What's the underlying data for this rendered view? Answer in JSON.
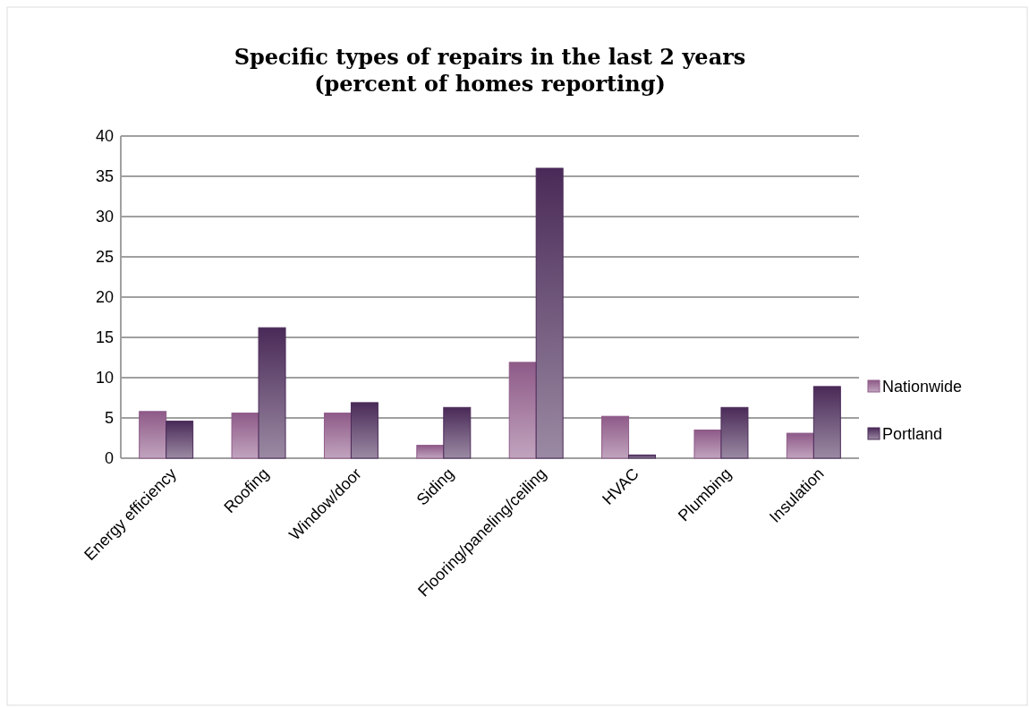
{
  "chart_data": {
    "type": "bar",
    "title": "Specific types of repairs in the last 2 years\n(percent of homes reporting)",
    "categories": [
      "Energy efficiency",
      "Roofing",
      "Window/door",
      "Siding",
      "Flooring/paneling/ceiling",
      "HVAC",
      "Plumbing",
      "Insulation"
    ],
    "series": [
      {
        "name": "Nationwide",
        "color": "#8e5a88",
        "values": [
          5.8,
          5.6,
          5.6,
          1.6,
          11.9,
          5.2,
          3.5,
          3.1
        ]
      },
      {
        "name": "Portland",
        "color": "#4a2a58",
        "values": [
          4.6,
          16.2,
          6.9,
          6.3,
          36.0,
          0.4,
          6.3,
          8.9
        ]
      }
    ],
    "ylim": [
      0,
      40
    ],
    "yticks": [
      0,
      5,
      10,
      15,
      20,
      25,
      30,
      35,
      40
    ],
    "grid": "y",
    "legend": "right"
  }
}
